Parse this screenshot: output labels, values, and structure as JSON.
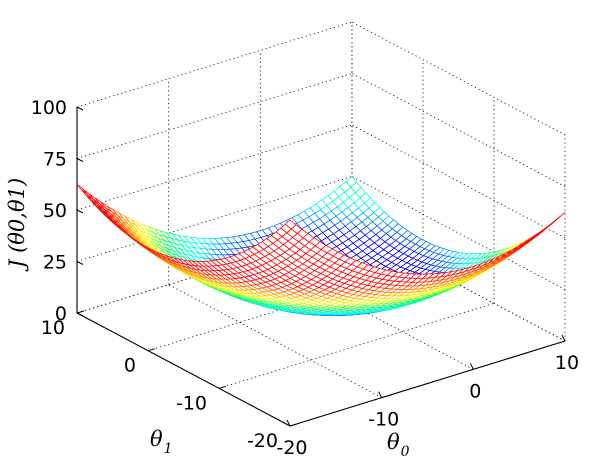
{
  "chart_data": {
    "type": "surface-mesh",
    "function": "J(θ0, θ1) = (θ0² + θ1²) / 8",
    "x": {
      "label": "θ",
      "label_sub": "0",
      "range": [
        -20,
        10
      ],
      "ticks": [
        -20,
        -10,
        0,
        10
      ]
    },
    "y": {
      "label": "θ",
      "label_sub": "1",
      "range": [
        -20,
        10
      ],
      "ticks": [
        -20,
        -10,
        0,
        10
      ]
    },
    "z": {
      "label": "J (θ0,θ1)",
      "range": [
        0,
        100
      ],
      "ticks": [
        0,
        25,
        50,
        75,
        100
      ]
    },
    "mesh_resolution": 46,
    "grid": true,
    "colormap": "jet",
    "colormap_colors": [
      "#00008f",
      "#0000ff",
      "#00ffff",
      "#00ff66",
      "#ffff00",
      "#ff8000",
      "#ff0000"
    ],
    "color_range": [
      0,
      50
    ]
  }
}
